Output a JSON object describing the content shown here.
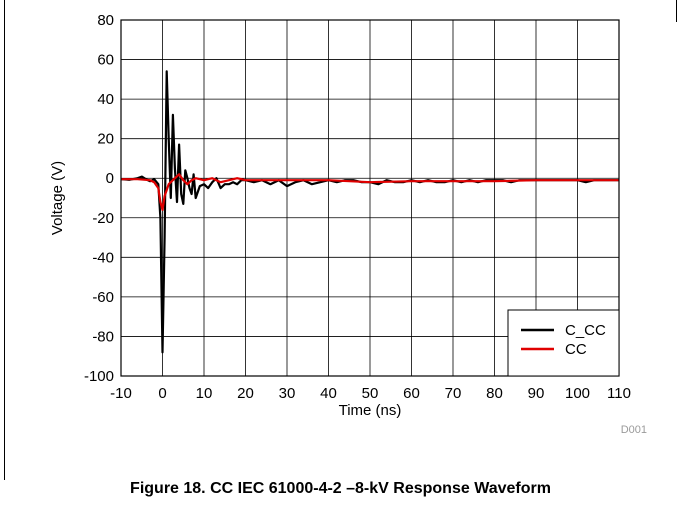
{
  "figure": {
    "caption": "Figure 18. CC IEC 61000-4-2 –8-kV Response Waveform",
    "id_label": "D001"
  },
  "chart_data": {
    "type": "line",
    "xlabel": "Time (ns)",
    "ylabel": "Voltage (V)",
    "xlim": [
      -10,
      110
    ],
    "ylim": [
      -100,
      80
    ],
    "xticks": [
      -10,
      0,
      10,
      20,
      30,
      40,
      50,
      60,
      70,
      80,
      90,
      100,
      110
    ],
    "yticks": [
      -100,
      -80,
      -60,
      -40,
      -20,
      0,
      20,
      40,
      60,
      80
    ],
    "grid": true,
    "legend_position": "bottom-right",
    "series": [
      {
        "name": "C_CC",
        "color": "#000000",
        "x": [
          -10,
          -8,
          -6,
          -5,
          -4,
          -3,
          -2,
          -1,
          -0.5,
          0,
          0.5,
          1,
          1.5,
          2,
          2.5,
          3,
          3.5,
          4,
          4.5,
          5,
          5.5,
          6,
          6.5,
          7,
          7.5,
          8,
          9,
          10,
          11,
          12,
          13,
          14,
          15,
          16,
          17,
          18,
          19,
          20,
          22,
          24,
          26,
          28,
          30,
          32,
          34,
          36,
          38,
          40,
          42,
          44,
          46,
          48,
          50,
          52,
          54,
          56,
          58,
          60,
          62,
          64,
          66,
          68,
          70,
          72,
          74,
          76,
          78,
          80,
          82,
          84,
          86,
          88,
          90,
          92,
          94,
          96,
          98,
          100,
          102,
          104,
          106,
          108,
          110
        ],
        "y": [
          -0.5,
          -0.8,
          0,
          0.8,
          -0.5,
          -1.5,
          -0.5,
          -3,
          -20,
          -88,
          -30,
          54,
          20,
          -10,
          32,
          5,
          -12,
          17,
          -8,
          -13,
          4,
          0,
          -5,
          -8,
          2,
          -10,
          -4,
          -3,
          -5,
          -2,
          0,
          -5,
          -3,
          -3,
          -2,
          -3,
          -1,
          -1,
          -2,
          -1,
          -3,
          -1,
          -4,
          -2,
          -1,
          -3,
          -2,
          -1,
          -2,
          -1,
          -1,
          -2,
          -2,
          -3,
          -1,
          -2,
          -2,
          -1,
          -2,
          -1,
          -2,
          -2,
          -1,
          -2,
          -1,
          -2,
          -1,
          -1,
          -1,
          -2,
          -1,
          -1,
          -1,
          -1,
          -1,
          -1,
          -1,
          -1,
          -2,
          -1,
          -1,
          -1,
          -1
        ]
      },
      {
        "name": "CC",
        "color": "#e00000",
        "x": [
          -10,
          -6,
          -3,
          -2,
          -1,
          -0.5,
          0,
          0.5,
          1,
          1.5,
          2,
          3,
          4,
          5,
          6,
          7,
          8,
          10,
          12,
          14,
          16,
          18,
          20,
          25,
          30,
          40,
          50,
          60,
          70,
          80,
          90,
          100,
          110
        ],
        "y": [
          -0.5,
          -0.5,
          -1,
          -2,
          -5,
          -12,
          -16,
          -9,
          -6,
          -3,
          -2,
          0,
          2,
          -1,
          -3,
          -1,
          0,
          -1,
          0,
          -2,
          -1,
          0,
          -1,
          -1,
          -1,
          -1,
          -2,
          -1.5,
          -1.5,
          -1.5,
          -1,
          -1,
          -1
        ]
      }
    ]
  }
}
